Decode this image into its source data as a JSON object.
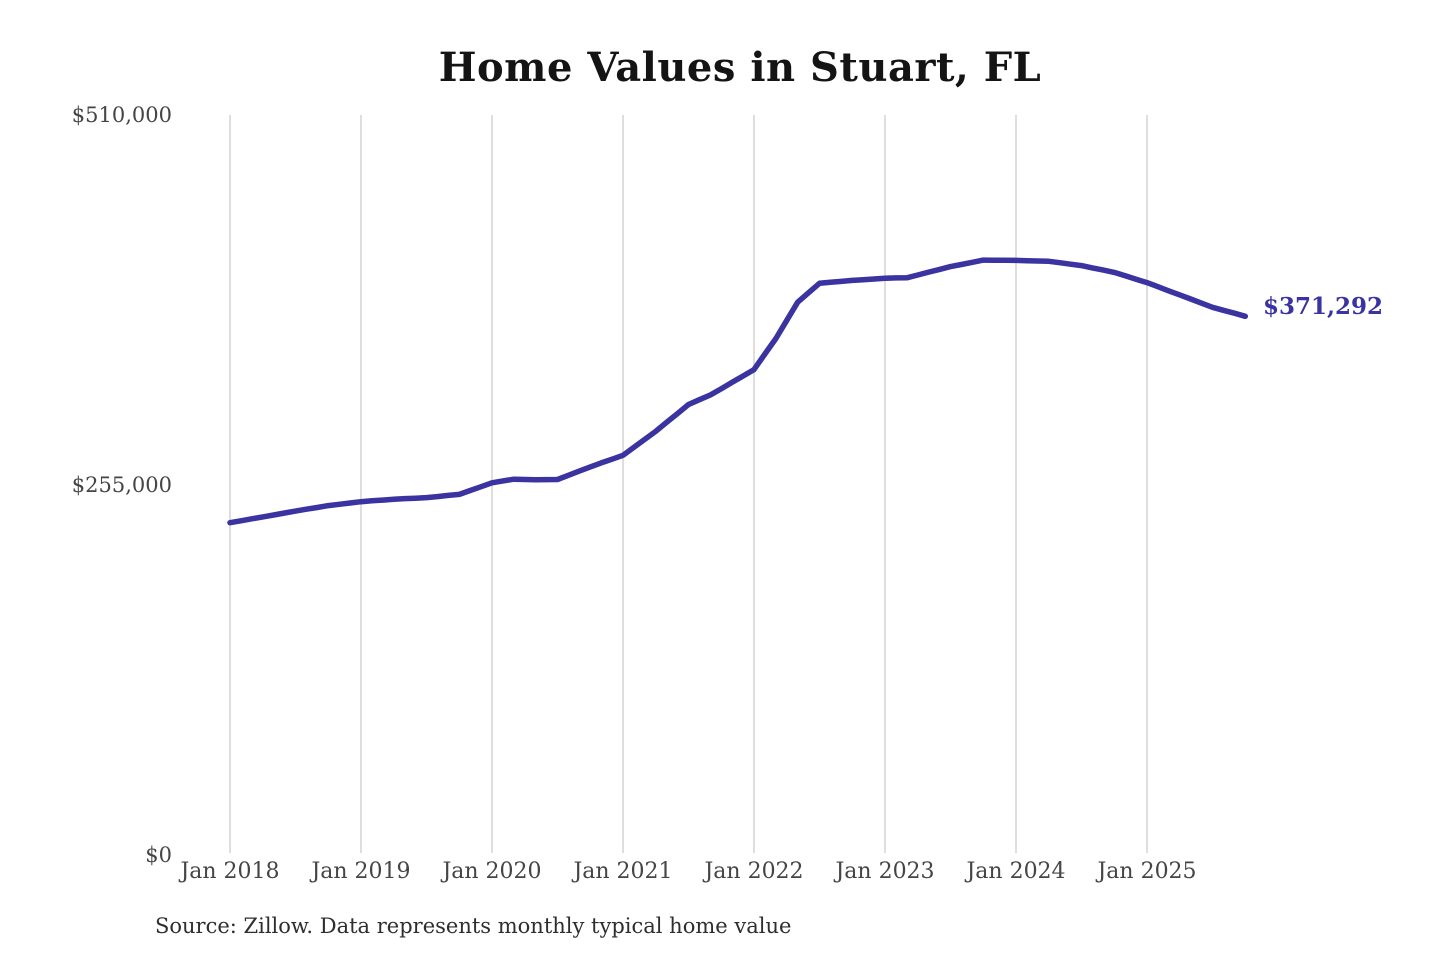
{
  "chart": {
    "title": "Home Values in Stuart, FL",
    "end_label": "$371,292",
    "source": "Source: Zillow. Data represents monthly typical home value",
    "colors": {
      "line": "#3a33a0",
      "grid": "#cccccc",
      "title_text": "#141414",
      "tick_text": "#454545",
      "end_label_text": "#3a33a0",
      "source_text": "#2e2e2e",
      "background": "#ffffff"
    }
  },
  "chart_data": {
    "type": "line",
    "title": "Home Values in Stuart, FL",
    "xlabel": "",
    "ylabel": "",
    "unit": "USD",
    "frequency": "monthly",
    "start_month": "2018-01",
    "end_month": "2025-10",
    "ylim": [
      0,
      510000
    ],
    "grid": "vertical-only",
    "legend": "none",
    "y_ticks": [
      {
        "label": "$510,000",
        "value": 510000
      },
      {
        "label": "$255,000",
        "value": 255000
      },
      {
        "label": "$0",
        "value": 0
      }
    ],
    "x_ticks": [
      {
        "label": "Jan 2018",
        "month_offset": 0
      },
      {
        "label": "Jan 2019",
        "month_offset": 12
      },
      {
        "label": "Jan 2020",
        "month_offset": 24
      },
      {
        "label": "Jan 2021",
        "month_offset": 36
      },
      {
        "label": "Jan 2022",
        "month_offset": 48
      },
      {
        "label": "Jan 2023",
        "month_offset": 60
      },
      {
        "label": "Jan 2024",
        "month_offset": 72
      },
      {
        "label": "Jan 2025",
        "month_offset": 84
      }
    ],
    "series": [
      {
        "name": "Typical home value",
        "values": [
          229000,
          230300,
          231700,
          233000,
          234300,
          235700,
          237000,
          238300,
          239500,
          240800,
          241700,
          242600,
          243500,
          244100,
          244600,
          245200,
          245600,
          245900,
          246300,
          247000,
          247800,
          248500,
          251200,
          253800,
          256500,
          257800,
          259000,
          258800,
          258600,
          258700,
          258800,
          261700,
          264600,
          267500,
          270200,
          272800,
          275500,
          281000,
          286500,
          292000,
          298200,
          304300,
          310500,
          313800,
          317000,
          321400,
          325800,
          330100,
          334500,
          345300,
          356000,
          368500,
          381000,
          387500,
          394000,
          394700,
          395300,
          396000,
          396500,
          397000,
          397500,
          397700,
          397800,
          399700,
          401700,
          403600,
          405500,
          407000,
          408500,
          410000,
          409900,
          409900,
          409800,
          409600,
          409400,
          409200,
          408200,
          407200,
          406200,
          404600,
          403100,
          401500,
          399200,
          396800,
          394500,
          391700,
          388800,
          386000,
          383200,
          380300,
          377500,
          375400,
          373400,
          371292
        ]
      }
    ],
    "last_value": 371292,
    "last_value_label": "$371,292"
  }
}
